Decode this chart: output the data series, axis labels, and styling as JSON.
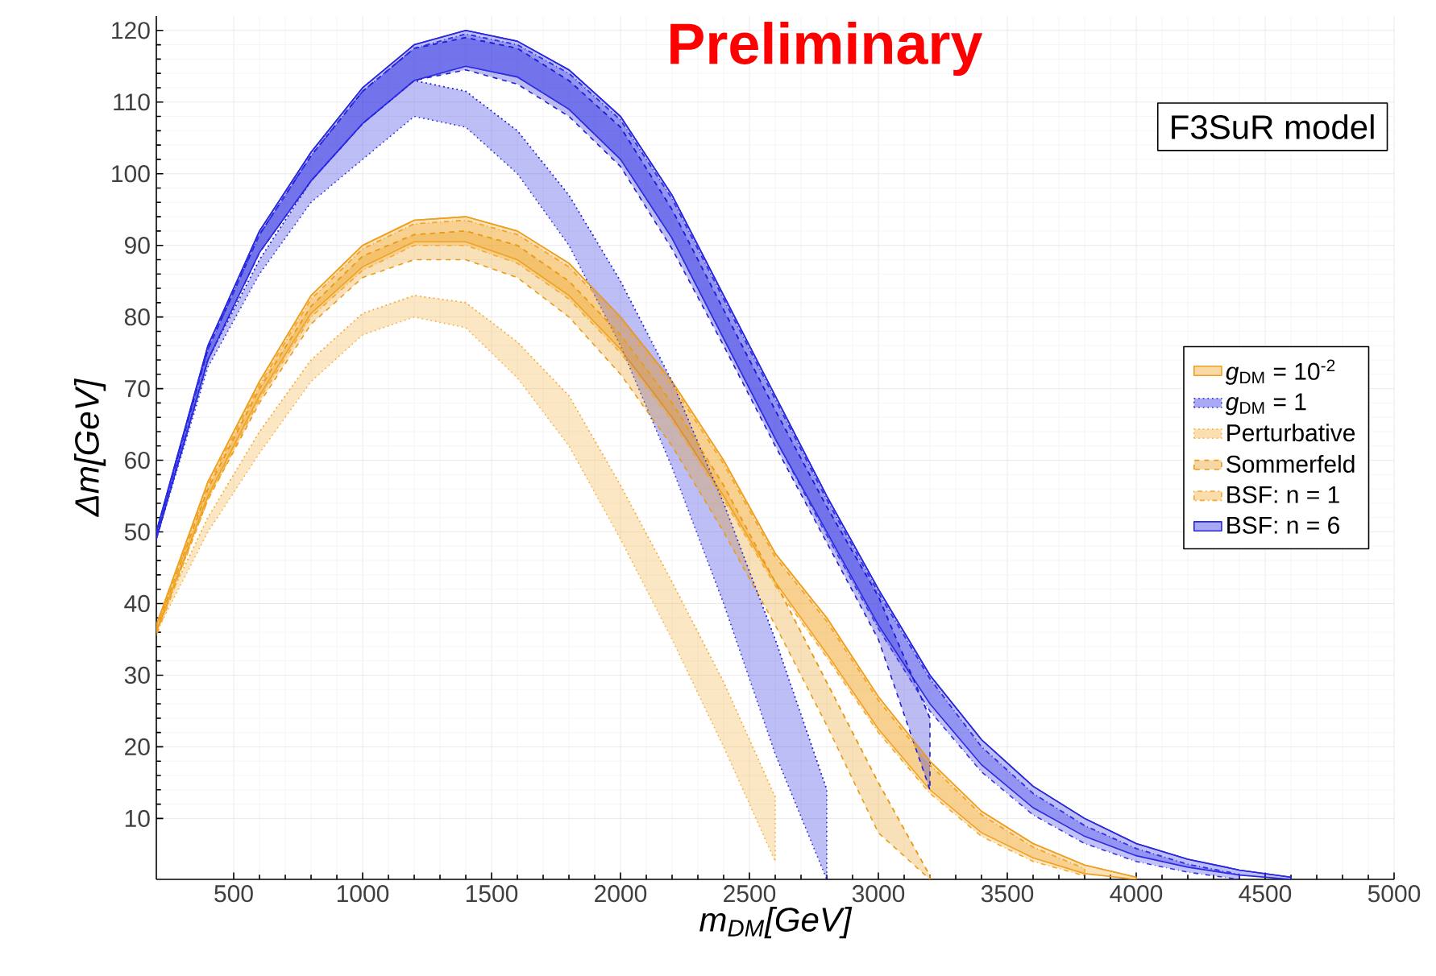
{
  "chart_data": {
    "type": "line",
    "xlabel": "*m*$_{DM}$[*GeV*]",
    "ylabel": "Δm[GeV]",
    "annotations": [
      "Preliminary",
      "F3SuR model"
    ],
    "x": [
      200,
      400,
      600,
      800,
      1000,
      1200,
      1400,
      1600,
      1800,
      2000,
      2200,
      2400,
      2600,
      2800,
      3000,
      3200,
      3400,
      3600,
      3800,
      4000,
      4200,
      4400,
      4600
    ],
    "xlim": [
      200,
      5000
    ],
    "xticks": [
      500,
      1000,
      1500,
      2000,
      2500,
      3000,
      3500,
      4000,
      4500,
      5000
    ],
    "ylim": [
      1.5,
      122
    ],
    "yticks": [
      10,
      20,
      30,
      40,
      50,
      60,
      70,
      80,
      90,
      100,
      110,
      120
    ],
    "grid": true,
    "legend": "right",
    "series": [
      {
        "name": "*g*$_{DM}$ = 10$^{-2}$",
        "color": "#f0a020",
        "line_style": "solid",
        "values": [
          37,
          57,
          71,
          83,
          90,
          93.5,
          94,
          92,
          87.5,
          80,
          71,
          60,
          47,
          38,
          27,
          18,
          11,
          6.5,
          3.5,
          1.8,
          null,
          null,
          null
        ],
        "upper": [
          37,
          57,
          71,
          83,
          90,
          93.5,
          94,
          92,
          87.5,
          80,
          71,
          60,
          47,
          38,
          27,
          18,
          11,
          6.5,
          3.5,
          1.8,
          null,
          null,
          null
        ],
        "lower": [
          36,
          55,
          69,
          80.5,
          87,
          90.5,
          90.5,
          88,
          83,
          75.5,
          66,
          55,
          43,
          33,
          22.5,
          14,
          8,
          4.5,
          2.3,
          1.5,
          null,
          null,
          null
        ]
      },
      {
        "name": "*g*$_{DM}$ = 1",
        "color": "#2828e0",
        "line_style": "dotted",
        "values": [
          49.5,
          74,
          88,
          99,
          107,
          113,
          111.5,
          106,
          97,
          85,
          71,
          54,
          35,
          14,
          null,
          null,
          null,
          null,
          null,
          null,
          null,
          null,
          null
        ],
        "upper": [
          49.5,
          74,
          88,
          99,
          107,
          113,
          111.5,
          106,
          97,
          85,
          71,
          54,
          35,
          14,
          null,
          null,
          null,
          null,
          null,
          null,
          null,
          null,
          null
        ],
        "lower": [
          49,
          73,
          86,
          96,
          102,
          108,
          106.5,
          100,
          90,
          76,
          59,
          40,
          19,
          1.5,
          null,
          null,
          null,
          null,
          null,
          null,
          null,
          null,
          null
        ]
      },
      {
        "name": "Perturbative",
        "color": "#f5b040",
        "line_style": "dotted",
        "values": [
          37,
          52,
          64,
          74,
          80.5,
          83,
          82,
          76.5,
          69,
          56.5,
          43,
          29,
          13,
          null,
          null,
          null,
          null,
          null,
          null,
          null,
          null,
          null,
          null
        ],
        "upper": [
          37,
          52,
          64,
          74,
          80.5,
          83,
          82,
          76.5,
          69,
          56.5,
          43,
          29,
          13,
          null,
          null,
          null,
          null,
          null,
          null,
          null,
          null,
          null,
          null
        ],
        "lower": [
          36,
          50,
          61,
          71,
          77.5,
          80,
          78.5,
          71.5,
          62,
          49,
          35,
          20,
          4,
          null,
          null,
          null,
          null,
          null,
          null,
          null,
          null,
          null,
          null
        ]
      },
      {
        "name": "Sommerfeld",
        "color": "#e89c18",
        "line_style": "dashed",
        "values": [
          36.5,
          56,
          70,
          81.5,
          88.5,
          91.5,
          92,
          90,
          85,
          77.5,
          68,
          56.5,
          43,
          29,
          15,
          2,
          null,
          null,
          null,
          null,
          null,
          null,
          null
        ],
        "upper": [
          36.5,
          56,
          70,
          81.5,
          88.5,
          91.5,
          92,
          90,
          85,
          77.5,
          68,
          56.5,
          43,
          29,
          15,
          2,
          null,
          null,
          null,
          null,
          null,
          null,
          null
        ],
        "lower": [
          36,
          54.5,
          68,
          79,
          85.5,
          88,
          88,
          85.5,
          80,
          72,
          62,
          50,
          37,
          23,
          8,
          1.5,
          null,
          null,
          null,
          null,
          null,
          null,
          null
        ]
      },
      {
        "name": "BSF: n = 1",
        "color": "#f4a82c",
        "line_style": "dashdot",
        "values": [
          36.5,
          56.5,
          70.5,
          82.5,
          89.5,
          93,
          93.5,
          91.5,
          87,
          79.5,
          70.5,
          59.5,
          46.5,
          37.5,
          26.5,
          17.5,
          10.5,
          6,
          3,
          null,
          null,
          null,
          null
        ],
        "upper": [
          36.5,
          56.5,
          70.5,
          82.5,
          89.5,
          93,
          93.5,
          91.5,
          87,
          79.5,
          70.5,
          59.5,
          46.5,
          37.5,
          26.5,
          17.5,
          10.5,
          6,
          3,
          null,
          null,
          null,
          null
        ],
        "lower": [
          35.5,
          54.5,
          68.5,
          80,
          86.5,
          90,
          90,
          87.5,
          82.5,
          75,
          65.5,
          54.5,
          42.5,
          32.5,
          22,
          13.5,
          7.5,
          4,
          2,
          null,
          null,
          null,
          null
        ]
      },
      {
        "name": "BSF: n = 6",
        "color": "#2828e0",
        "line_style": "solid",
        "values": [
          50,
          76,
          92,
          103,
          112,
          118,
          120,
          118.5,
          114.5,
          108,
          97,
          83,
          69,
          55,
          42,
          30,
          21,
          14.5,
          10,
          6.5,
          4.3,
          2.8,
          1.8
        ],
        "upper": [
          50,
          76,
          92,
          103,
          112,
          118,
          120,
          118.5,
          114.5,
          108,
          97,
          83,
          69,
          55,
          42,
          30,
          21,
          14.5,
          10,
          6.5,
          4.3,
          2.8,
          1.8
        ],
        "lower": [
          49,
          74,
          89,
          99,
          107,
          113,
          115,
          113.5,
          109,
          102,
          91,
          77,
          63,
          50,
          37,
          26,
          17.5,
          11.5,
          7.5,
          4.8,
          3.2,
          2.1,
          1.5
        ]
      },
      {
        "color": "#2020d4",
        "line_style": "dashed",
        "values": [
          49.8,
          75.5,
          91.5,
          102.5,
          111.5,
          117.5,
          119,
          117.5,
          113,
          106.5,
          95,
          81,
          67,
          53.5,
          41,
          24,
          null,
          null,
          null,
          null,
          null,
          null,
          null
        ],
        "upper": [
          49.8,
          75.5,
          91.5,
          102.5,
          111.5,
          117.5,
          119,
          117.5,
          113,
          106.5,
          95,
          81,
          67,
          53.5,
          41,
          24,
          null,
          null,
          null,
          null,
          null,
          null,
          null
        ],
        "lower": [
          49,
          74,
          89,
          99,
          107,
          113,
          114.5,
          112.5,
          108,
          101,
          89.5,
          76,
          62,
          48.5,
          35,
          14,
          null,
          null,
          null,
          null,
          null,
          null,
          null
        ]
      },
      {
        "color": "#3434e8",
        "line_style": "dashdot",
        "values": [
          49.8,
          75.5,
          91.5,
          102.5,
          111.5,
          117.5,
          119.5,
          118,
          114,
          107.5,
          96.5,
          82.5,
          68.5,
          54.5,
          41.5,
          29.5,
          20,
          13.5,
          9,
          5.8,
          3.6,
          2.2,
          null
        ],
        "upper": [
          49.8,
          75.5,
          91.5,
          102.5,
          111.5,
          117.5,
          119.5,
          118,
          114,
          107.5,
          96.5,
          82.5,
          68.5,
          54.5,
          41.5,
          29.5,
          20,
          13.5,
          9,
          5.8,
          3.6,
          2.2,
          null
        ],
        "lower": [
          49,
          74,
          89,
          99,
          107,
          113,
          115,
          113.5,
          109,
          102,
          91,
          77,
          63,
          49.5,
          36.5,
          25,
          16.5,
          10.5,
          6.5,
          4,
          2.5,
          1.5,
          null
        ]
      }
    ]
  }
}
